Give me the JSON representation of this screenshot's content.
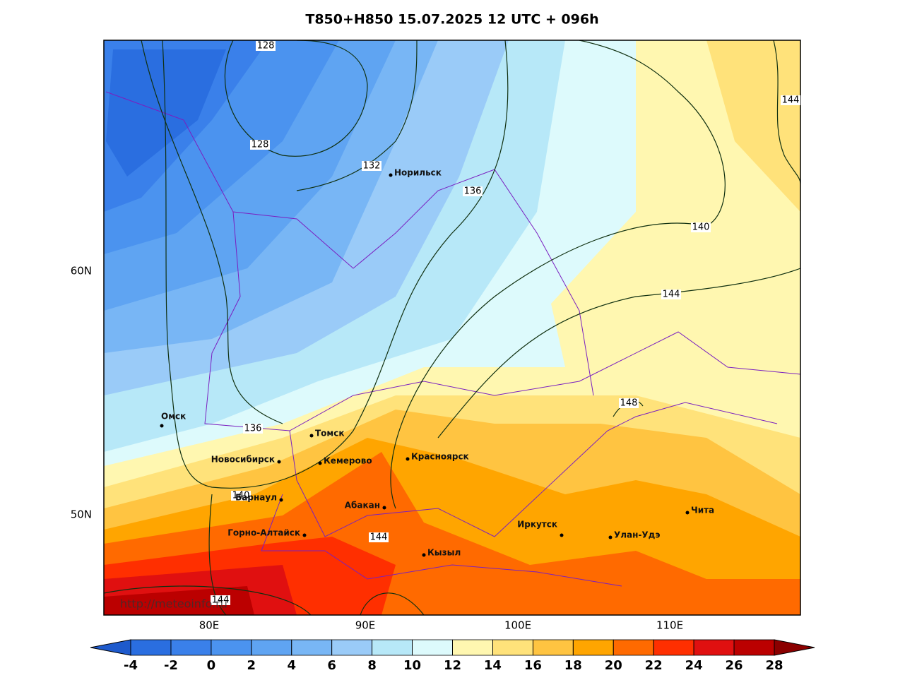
{
  "title": "T850+H850 15.07.2025 12 UTC + 096h",
  "map": {
    "lat_labels": [
      "60N",
      "50N"
    ],
    "lon_labels": [
      "80E",
      "90E",
      "100E",
      "110E"
    ],
    "contour_labels": [
      128,
      128,
      132,
      136,
      140,
      144,
      144,
      148,
      136,
      140,
      144,
      144
    ],
    "cities": [
      "Норильск",
      "Омск",
      "Томск",
      "Новосибирск",
      "Кемерово",
      "Красноярск",
      "Барнаул",
      "Абакан",
      "Горно-Алтайск",
      "Кызыл",
      "Иркутск",
      "Улан-Удэ",
      "Чита"
    ],
    "credit": "http://meteoinfo.ru"
  },
  "colorbar": {
    "ticks": [
      -4,
      -2,
      0,
      2,
      4,
      6,
      8,
      10,
      12,
      14,
      16,
      18,
      20,
      22,
      24,
      26,
      28
    ],
    "colors": [
      "#1e5acc",
      "#2a6ee0",
      "#3a80ea",
      "#4b93ef",
      "#5fa4f2",
      "#78b6f5",
      "#9acbf8",
      "#b7e8f8",
      "#ddfafc",
      "#fff7b0",
      "#ffe27a",
      "#ffc441",
      "#ffa500",
      "#ff6a00",
      "#ff2f00",
      "#e01010",
      "#bb0000",
      "#8b0000"
    ]
  }
}
